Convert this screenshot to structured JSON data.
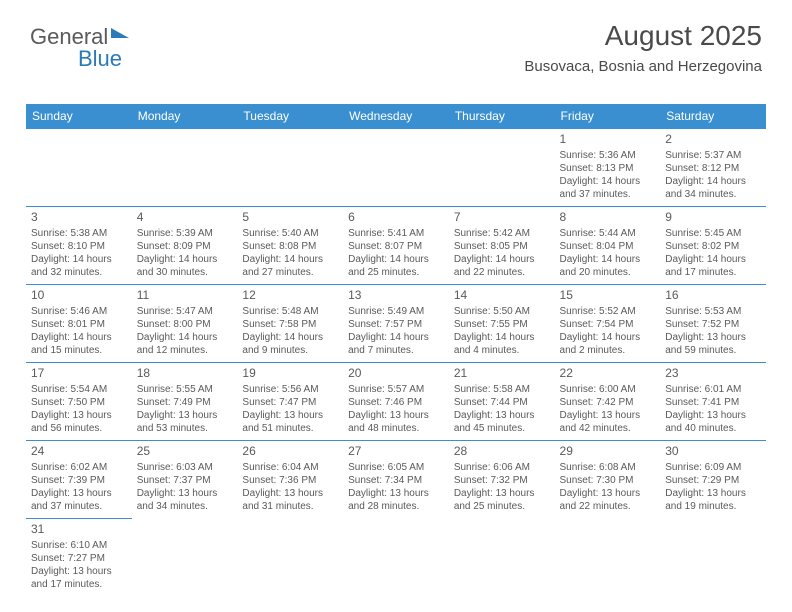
{
  "brand": {
    "part1": "General",
    "part2": "Blue"
  },
  "title": "August 2025",
  "location": "Busovaca, Bosnia and Herzegovina",
  "colors": {
    "header_bg": "#3a8fd0",
    "header_text": "#ffffff",
    "border": "#3a8fd0",
    "text": "#5a5a5a",
    "brand_gray": "#5a5a5a",
    "brand_blue": "#2b7bb9",
    "page_bg": "#ffffff"
  },
  "typography": {
    "title_fontsize": 28,
    "location_fontsize": 15,
    "dayheader_fontsize": 12,
    "daynum_fontsize": 12,
    "body_fontsize": 10
  },
  "day_headers": [
    "Sunday",
    "Monday",
    "Tuesday",
    "Wednesday",
    "Thursday",
    "Friday",
    "Saturday"
  ],
  "weeks": [
    [
      null,
      null,
      null,
      null,
      null,
      {
        "n": "1",
        "sr": "Sunrise: 5:36 AM",
        "ss": "Sunset: 8:13 PM",
        "dl": "Daylight: 14 hours and 37 minutes."
      },
      {
        "n": "2",
        "sr": "Sunrise: 5:37 AM",
        "ss": "Sunset: 8:12 PM",
        "dl": "Daylight: 14 hours and 34 minutes."
      }
    ],
    [
      {
        "n": "3",
        "sr": "Sunrise: 5:38 AM",
        "ss": "Sunset: 8:10 PM",
        "dl": "Daylight: 14 hours and 32 minutes."
      },
      {
        "n": "4",
        "sr": "Sunrise: 5:39 AM",
        "ss": "Sunset: 8:09 PM",
        "dl": "Daylight: 14 hours and 30 minutes."
      },
      {
        "n": "5",
        "sr": "Sunrise: 5:40 AM",
        "ss": "Sunset: 8:08 PM",
        "dl": "Daylight: 14 hours and 27 minutes."
      },
      {
        "n": "6",
        "sr": "Sunrise: 5:41 AM",
        "ss": "Sunset: 8:07 PM",
        "dl": "Daylight: 14 hours and 25 minutes."
      },
      {
        "n": "7",
        "sr": "Sunrise: 5:42 AM",
        "ss": "Sunset: 8:05 PM",
        "dl": "Daylight: 14 hours and 22 minutes."
      },
      {
        "n": "8",
        "sr": "Sunrise: 5:44 AM",
        "ss": "Sunset: 8:04 PM",
        "dl": "Daylight: 14 hours and 20 minutes."
      },
      {
        "n": "9",
        "sr": "Sunrise: 5:45 AM",
        "ss": "Sunset: 8:02 PM",
        "dl": "Daylight: 14 hours and 17 minutes."
      }
    ],
    [
      {
        "n": "10",
        "sr": "Sunrise: 5:46 AM",
        "ss": "Sunset: 8:01 PM",
        "dl": "Daylight: 14 hours and 15 minutes."
      },
      {
        "n": "11",
        "sr": "Sunrise: 5:47 AM",
        "ss": "Sunset: 8:00 PM",
        "dl": "Daylight: 14 hours and 12 minutes."
      },
      {
        "n": "12",
        "sr": "Sunrise: 5:48 AM",
        "ss": "Sunset: 7:58 PM",
        "dl": "Daylight: 14 hours and 9 minutes."
      },
      {
        "n": "13",
        "sr": "Sunrise: 5:49 AM",
        "ss": "Sunset: 7:57 PM",
        "dl": "Daylight: 14 hours and 7 minutes."
      },
      {
        "n": "14",
        "sr": "Sunrise: 5:50 AM",
        "ss": "Sunset: 7:55 PM",
        "dl": "Daylight: 14 hours and 4 minutes."
      },
      {
        "n": "15",
        "sr": "Sunrise: 5:52 AM",
        "ss": "Sunset: 7:54 PM",
        "dl": "Daylight: 14 hours and 2 minutes."
      },
      {
        "n": "16",
        "sr": "Sunrise: 5:53 AM",
        "ss": "Sunset: 7:52 PM",
        "dl": "Daylight: 13 hours and 59 minutes."
      }
    ],
    [
      {
        "n": "17",
        "sr": "Sunrise: 5:54 AM",
        "ss": "Sunset: 7:50 PM",
        "dl": "Daylight: 13 hours and 56 minutes."
      },
      {
        "n": "18",
        "sr": "Sunrise: 5:55 AM",
        "ss": "Sunset: 7:49 PM",
        "dl": "Daylight: 13 hours and 53 minutes."
      },
      {
        "n": "19",
        "sr": "Sunrise: 5:56 AM",
        "ss": "Sunset: 7:47 PM",
        "dl": "Daylight: 13 hours and 51 minutes."
      },
      {
        "n": "20",
        "sr": "Sunrise: 5:57 AM",
        "ss": "Sunset: 7:46 PM",
        "dl": "Daylight: 13 hours and 48 minutes."
      },
      {
        "n": "21",
        "sr": "Sunrise: 5:58 AM",
        "ss": "Sunset: 7:44 PM",
        "dl": "Daylight: 13 hours and 45 minutes."
      },
      {
        "n": "22",
        "sr": "Sunrise: 6:00 AM",
        "ss": "Sunset: 7:42 PM",
        "dl": "Daylight: 13 hours and 42 minutes."
      },
      {
        "n": "23",
        "sr": "Sunrise: 6:01 AM",
        "ss": "Sunset: 7:41 PM",
        "dl": "Daylight: 13 hours and 40 minutes."
      }
    ],
    [
      {
        "n": "24",
        "sr": "Sunrise: 6:02 AM",
        "ss": "Sunset: 7:39 PM",
        "dl": "Daylight: 13 hours and 37 minutes."
      },
      {
        "n": "25",
        "sr": "Sunrise: 6:03 AM",
        "ss": "Sunset: 7:37 PM",
        "dl": "Daylight: 13 hours and 34 minutes."
      },
      {
        "n": "26",
        "sr": "Sunrise: 6:04 AM",
        "ss": "Sunset: 7:36 PM",
        "dl": "Daylight: 13 hours and 31 minutes."
      },
      {
        "n": "27",
        "sr": "Sunrise: 6:05 AM",
        "ss": "Sunset: 7:34 PM",
        "dl": "Daylight: 13 hours and 28 minutes."
      },
      {
        "n": "28",
        "sr": "Sunrise: 6:06 AM",
        "ss": "Sunset: 7:32 PM",
        "dl": "Daylight: 13 hours and 25 minutes."
      },
      {
        "n": "29",
        "sr": "Sunrise: 6:08 AM",
        "ss": "Sunset: 7:30 PM",
        "dl": "Daylight: 13 hours and 22 minutes."
      },
      {
        "n": "30",
        "sr": "Sunrise: 6:09 AM",
        "ss": "Sunset: 7:29 PM",
        "dl": "Daylight: 13 hours and 19 minutes."
      }
    ],
    [
      {
        "n": "31",
        "sr": "Sunrise: 6:10 AM",
        "ss": "Sunset: 7:27 PM",
        "dl": "Daylight: 13 hours and 17 minutes."
      },
      null,
      null,
      null,
      null,
      null,
      null
    ]
  ]
}
